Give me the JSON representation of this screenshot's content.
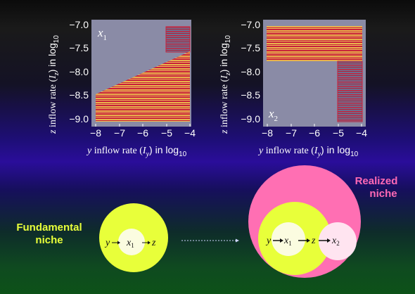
{
  "plots": [
    {
      "id": "x1",
      "panel_label": "x",
      "panel_sub": "1",
      "x_ticks": [
        "−8",
        "−7",
        "−6",
        "−5",
        "−4"
      ],
      "y_ticks": [
        "−7.0",
        "−7.5",
        "−8.0",
        "−8.5",
        "−9.0"
      ],
      "xlabel_parts": {
        "var": "y",
        "mid": " inflow rate (",
        "sym": "I",
        "sub": "y",
        "end": ") in log",
        "base": "10"
      },
      "ylabel_parts": {
        "var": "z",
        "mid": " inflow rate (",
        "sym": "I",
        "sub": "z",
        "end": ") in log",
        "base": "10"
      }
    },
    {
      "id": "x2",
      "panel_label": "x",
      "panel_sub": "2",
      "x_ticks": [
        "−8",
        "−7",
        "−6",
        "−5",
        "−4"
      ],
      "y_ticks": [
        "−7.0",
        "−7.5",
        "−8.0",
        "−8.5",
        "−9.0"
      ],
      "xlabel_parts": {
        "var": "y",
        "mid": " inflow rate (",
        "sym": "I",
        "sub": "y",
        "end": ") in log",
        "base": "10"
      },
      "ylabel_parts": {
        "var": "z",
        "mid": " inflow rate (",
        "sym": "I",
        "sub": "z",
        "end": ") in log",
        "base": "10"
      }
    }
  ],
  "fundamental": {
    "title_line1": "Fundamental",
    "title_line2": "niche",
    "chain": {
      "y": "y",
      "x": "x",
      "x_sub": "1",
      "z": "z"
    }
  },
  "realized": {
    "title_line1": "Realized",
    "title_line2": "niche",
    "chain": {
      "y": "y",
      "x1": "x",
      "x1_sub": "1",
      "z": "z",
      "x2": "x",
      "x2_sub": "2"
    }
  },
  "colors": {
    "fundamental_circle": "#e8ff3a",
    "realized_circle": "#ff6fb3",
    "realized_label": "#ff69b4",
    "fundamental_label": "#e8ff3a",
    "stripe_red": "#d0243c",
    "stripe_yellow": "#e8b04a"
  }
}
